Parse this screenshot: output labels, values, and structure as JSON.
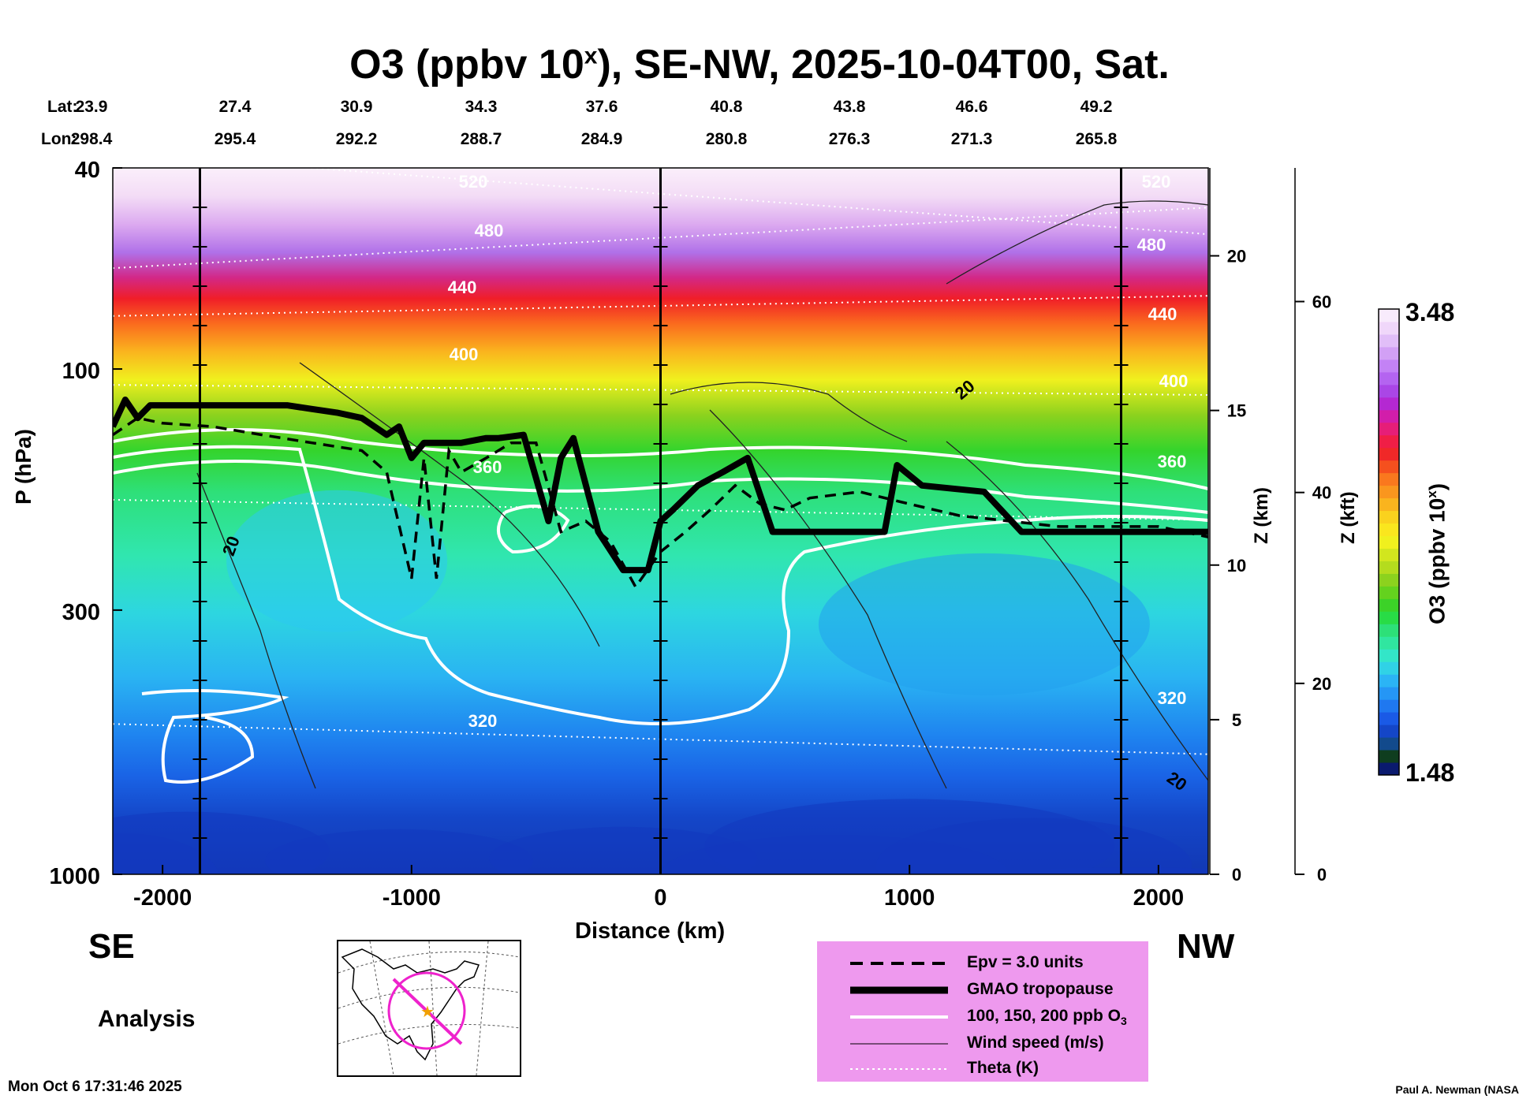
{
  "title": "O3 (ppbv 10",
  "title_sup": "x",
  "title_rest": "), SE-NW, 2025-10-04T00, Sat.",
  "lat_label": "Lat:",
  "lon_label": "Lon:",
  "latitudes": [
    "23.9",
    "27.4",
    "30.9",
    "34.3",
    "37.6",
    "40.8",
    "43.8",
    "46.6",
    "49.2"
  ],
  "longitudes": [
    "298.4",
    "295.4",
    "292.2",
    "288.7",
    "284.9",
    "280.8",
    "276.3",
    "271.3",
    "265.8"
  ],
  "left_label": "SE",
  "right_label": "NW",
  "analysis_label": "Analysis",
  "timestamp": "Mon Oct  6 17:31:46 2025",
  "credit": "Paul A. Newman (NASA",
  "legend": {
    "epv": "Epv = 3.0 units",
    "tropopause": "GMAO tropopause",
    "ozone_contours": "100, 150, 200 ppb O",
    "ozone_sub": "3",
    "wind": "Wind speed (m/s)",
    "theta": "Theta (K)"
  },
  "colorbar": {
    "max_label": "3.48",
    "min_label": "1.48",
    "label": "O3 (ppbv 10",
    "label_sup": "x",
    "label_end": ")",
    "colors": [
      "#0a1a6e",
      "#0f3d1f",
      "#124a8c",
      "#1446c8",
      "#1a5ae6",
      "#1f78f0",
      "#2596f5",
      "#2bb4f5",
      "#30d2e6",
      "#33e6c8",
      "#30e6a0",
      "#2de078",
      "#28dc46",
      "#3cd228",
      "#64d21e",
      "#8cd21e",
      "#b4dc1e",
      "#d2e61e",
      "#f0f01e",
      "#fae61e",
      "#fad21e",
      "#fab41e",
      "#fa961e",
      "#fa781e",
      "#f5501e",
      "#f02828",
      "#f01e46",
      "#e61e78",
      "#d21eaa",
      "#b428d2",
      "#aa46e6",
      "#b464f0",
      "#c382f5",
      "#d2a0f5",
      "#e1bef8",
      "#f0d7fa",
      "#f8ebfc"
    ]
  },
  "axes": {
    "x_label": "Distance (km)",
    "y_label": "P (hPa)",
    "z_km_label": "Z (km)",
    "z_kft_label": "Z (kft)",
    "x_ticks": [
      "-2000",
      "-1000",
      "0",
      "1000",
      "2000"
    ],
    "p_ticks": [
      "40",
      "100",
      "300",
      "1000"
    ],
    "z_km_ticks": [
      "20",
      "15",
      "10",
      "5",
      "0"
    ],
    "z_kft_ticks": [
      "60",
      "40",
      "20",
      "0"
    ],
    "theta_labels": [
      "520",
      "480",
      "440",
      "400",
      "360",
      "320",
      "520",
      "480",
      "440",
      "400",
      "360",
      "320"
    ],
    "wind_labels": [
      "20",
      "20",
      "20"
    ]
  },
  "chart_data": {
    "type": "heatmap",
    "title": "O3 (ppbv 10^x), SE-NW, 2025-10-04T00, Sat.",
    "xlabel": "Distance (km)",
    "ylabel": "P (hPa)",
    "xlim": [
      -2200,
      2200
    ],
    "ylim_hpa": [
      1000,
      40
    ],
    "colorbar_range": [
      1.48,
      3.48
    ],
    "section_distance_km": [
      -1850,
      0,
      1850
    ],
    "tropopause": {
      "x_km": [
        -2200,
        -2150,
        -2100,
        -2050,
        -1900,
        -1700,
        -1500,
        -1400,
        -1300,
        -1200,
        -1100,
        -1050,
        -1000,
        -950,
        -900,
        -850,
        -800,
        -700,
        -650,
        -550,
        -450,
        -400,
        -350,
        -250,
        -150,
        -50,
        0,
        50,
        150,
        250,
        350,
        450,
        550,
        700,
        900,
        950,
        1050,
        1300,
        1450,
        1600,
        1800,
        2000,
        2200
      ],
      "p_hpa": [
        130,
        115,
        125,
        118,
        118,
        118,
        118,
        120,
        122,
        125,
        135,
        130,
        150,
        140,
        140,
        140,
        140,
        137,
        137,
        135,
        200,
        150,
        137,
        210,
        250,
        250,
        200,
        190,
        170,
        160,
        150,
        210,
        210,
        210,
        210,
        155,
        170,
        175,
        210,
        210,
        210,
        210,
        210
      ]
    },
    "epv_3": {
      "x_km": [
        -2200,
        -2100,
        -2000,
        -1800,
        -1600,
        -1400,
        -1200,
        -1100,
        -1000,
        -950,
        -900,
        -850,
        -800,
        -700,
        -600,
        -500,
        -400,
        -300,
        -200,
        -100,
        0,
        100,
        200,
        300,
        400,
        500,
        600,
        800,
        1000,
        1200,
        1400,
        1600,
        1800,
        2000,
        2200
      ],
      "p_hpa": [
        135,
        125,
        128,
        130,
        135,
        140,
        145,
        160,
        260,
        150,
        260,
        145,
        160,
        150,
        140,
        140,
        210,
        200,
        220,
        270,
        230,
        210,
        190,
        170,
        185,
        190,
        180,
        175,
        185,
        195,
        200,
        205,
        205,
        205,
        215
      ]
    },
    "ozone_contours_ppb": [
      100,
      150,
      200
    ],
    "wind_speed_contour_ms": [
      20
    ],
    "theta_levels_k": [
      320,
      360,
      400,
      440,
      480,
      520
    ],
    "theta_p_hpa_at_center": [
      540,
      190,
      110,
      75,
      55,
      45
    ]
  }
}
